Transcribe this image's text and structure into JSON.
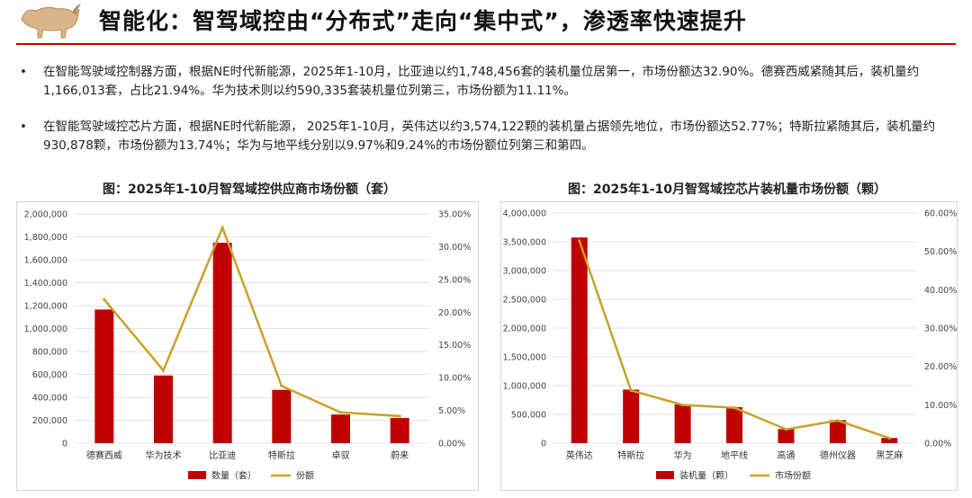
{
  "header": {
    "title": "智能化：智驾域控由“分布式”走向“集中式”，渗透率快速提升",
    "logo_icon": "bull-logo-icon"
  },
  "bullets": [
    {
      "marker": "•",
      "text": "在智能驾驶域控制器方面，根据NE时代新能源，2025年1-10月，比亚迪以约1,748,456套的装机量位居第一，市场份额达32.90%。德赛西威紧随其后，装机量约1,166,013套，占比21.94%。华为技术则以约590,335套装机量位列第三，市场份额为11.11%。"
    },
    {
      "marker": "•",
      "text": "在智能驾驶域控芯片方面，根据NE时代新能源， 2025年1-10月，英伟达以约3,574,122颗的装机量占据领先地位，市场份额达52.77%；特斯拉紧随其后，装机量约930,878颗，市场份额为13.74%；华为与地平线分别以9.97%和9.24%的市场份额位列第三和第四。"
    }
  ],
  "colors": {
    "bar": "#c00000",
    "line": "#c9a227",
    "accent": "#c00000"
  },
  "chart_data": [
    {
      "type": "bar",
      "title": "图：2025年1-10月智驾域控供应商市场份额（套）",
      "categories": [
        "德赛西威",
        "华为技术",
        "比亚迪",
        "特斯拉",
        "卓驭",
        "蔚来"
      ],
      "series": [
        {
          "name": "数量（套）",
          "type": "bar",
          "axis": "left",
          "values": [
            1166013,
            590335,
            1748456,
            465000,
            250000,
            220000
          ]
        },
        {
          "name": "份额",
          "type": "line",
          "axis": "right",
          "values": [
            21.94,
            11.11,
            32.9,
            8.75,
            4.7,
            4.14
          ]
        }
      ],
      "ylim": [
        0,
        2000000
      ],
      "y_ticks": [
        "0",
        "200,000",
        "400,000",
        "600,000",
        "800,000",
        "1,000,000",
        "1,200,000",
        "1,400,000",
        "1,600,000",
        "1,800,000",
        "2,000,000"
      ],
      "y2lim": [
        0,
        35
      ],
      "y2_ticks": [
        "0.00%",
        "5.00%",
        "10.00%",
        "15.00%",
        "20.00%",
        "25.00%",
        "30.00%",
        "35.00%"
      ],
      "grid": true,
      "legend": "bottom"
    },
    {
      "type": "bar",
      "title": "图：2025年1-10月智驾域控芯片装机量市场份额（颗）",
      "categories": [
        "英伟达",
        "特斯拉",
        "华为",
        "地平线",
        "高通",
        "德州仪器",
        "黑芝麻"
      ],
      "series": [
        {
          "name": "装机量（颗）",
          "type": "bar",
          "axis": "left",
          "values": [
            3574122,
            930878,
            675000,
            626000,
            245000,
            400000,
            90000
          ]
        },
        {
          "name": "市场份额",
          "type": "line",
          "axis": "right",
          "values": [
            52.77,
            13.74,
            9.97,
            9.24,
            3.6,
            5.9,
            1.3
          ]
        }
      ],
      "ylim": [
        0,
        4000000
      ],
      "y_ticks": [
        "0",
        "500,000",
        "1,000,000",
        "1,500,000",
        "2,000,000",
        "2,500,000",
        "3,000,000",
        "3,500,000",
        "4,000,000"
      ],
      "y2lim": [
        0,
        60
      ],
      "y2_ticks": [
        "0.00%",
        "10.00%",
        "20.00%",
        "30.00%",
        "40.00%",
        "50.00%",
        "60.00%"
      ],
      "grid": true,
      "legend": "bottom"
    }
  ]
}
